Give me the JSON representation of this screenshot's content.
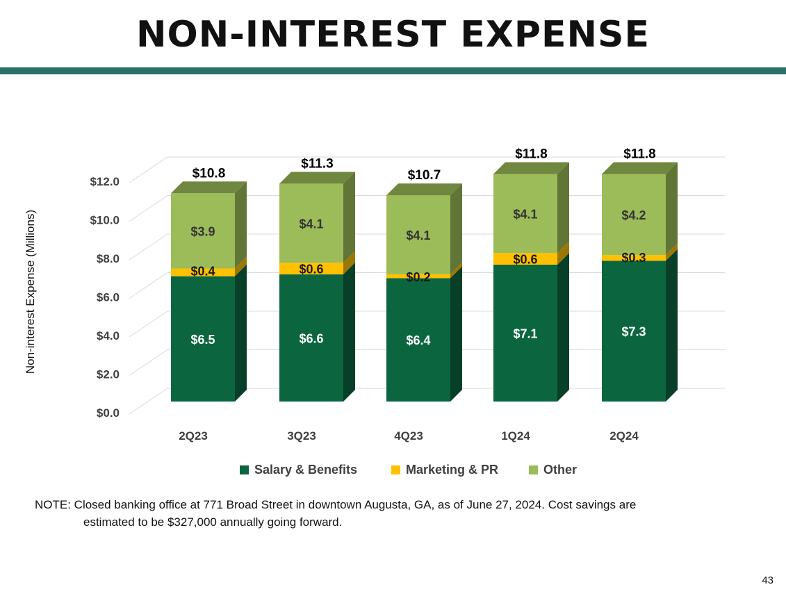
{
  "title": "NON-INTEREST EXPENSE",
  "note": {
    "line1": "NOTE:  Closed banking office at 771 Broad Street in downtown Augusta, GA, as of June 27, 2024.  Cost savings are",
    "line2": "estimated to be $327,000 annually going forward."
  },
  "page_number": "43",
  "colors": {
    "salary": "#0b6640",
    "marketing": "#ffc000",
    "other": "#9cbc59",
    "title_rule": "#2a7167"
  },
  "chart_data": {
    "type": "bar",
    "stacked": true,
    "style": "3d",
    "ylabel": "Non-interest Expense (Millions)",
    "ylim": [
      0,
      12
    ],
    "yticks": [
      0,
      2,
      4,
      6,
      8,
      10,
      12
    ],
    "ytick_labels": [
      "$0.0",
      "$2.0",
      "$4.0",
      "$6.0",
      "$8.0",
      "$10.0",
      "$12.0"
    ],
    "grid": true,
    "legend_position": "bottom",
    "categories": [
      "2Q23",
      "3Q23",
      "4Q23",
      "1Q24",
      "2Q24"
    ],
    "series": [
      {
        "name": "Salary & Benefits",
        "values": [
          6.5,
          6.6,
          6.4,
          7.1,
          7.3
        ],
        "labels": [
          "$6.5",
          "$6.6",
          "$6.4",
          "$7.1",
          "$7.3"
        ],
        "color": "#0b6640"
      },
      {
        "name": "Marketing & PR",
        "values": [
          0.4,
          0.6,
          0.2,
          0.6,
          0.3
        ],
        "labels": [
          "$0.4",
          "$0.6",
          "$0.2",
          "$0.6",
          "$0.3"
        ],
        "color": "#ffc000"
      },
      {
        "name": "Other",
        "values": [
          3.9,
          4.1,
          4.1,
          4.1,
          4.2
        ],
        "labels": [
          "$3.9",
          "$4.1",
          "$4.1",
          "$4.1",
          "$4.2"
        ],
        "color": "#9cbc59"
      }
    ],
    "totals": [
      10.8,
      11.3,
      10.7,
      11.8,
      11.8
    ],
    "total_labels": [
      "$10.8",
      "$11.3",
      "$10.7",
      "$11.8",
      "$11.8"
    ]
  }
}
